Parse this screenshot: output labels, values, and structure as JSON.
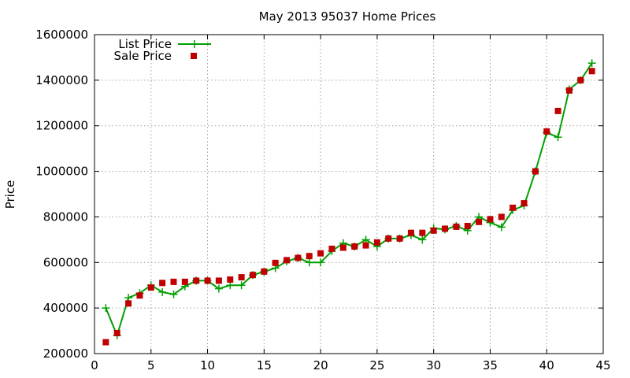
{
  "chart_data": {
    "type": "line",
    "title": "May 2013 95037 Home Prices",
    "xlabel": "",
    "ylabel": "Price",
    "xlim": [
      0,
      45
    ],
    "ylim": [
      200000,
      1600000
    ],
    "x_ticks": [
      "0",
      "5",
      "10",
      "15",
      "20",
      "25",
      "30",
      "35",
      "40",
      "45"
    ],
    "y_ticks": [
      "200000",
      "400000",
      "600000",
      "800000",
      "1000000",
      "1200000",
      "1400000",
      "1600000"
    ],
    "grid": true,
    "legend_position": "top-left",
    "colors": {
      "list": "#00a000",
      "sale": "#c00000"
    },
    "series": [
      {
        "name": "List Price",
        "style": "line-plus",
        "x": [
          1,
          2,
          3,
          4,
          5,
          6,
          7,
          8,
          9,
          10,
          11,
          12,
          13,
          14,
          15,
          16,
          17,
          18,
          19,
          20,
          21,
          22,
          23,
          24,
          25,
          26,
          27,
          28,
          29,
          30,
          31,
          32,
          33,
          34,
          35,
          36,
          37,
          38,
          39,
          40,
          41,
          42,
          43,
          44
        ],
        "values": [
          400000,
          280000,
          445000,
          465000,
          500000,
          470000,
          460000,
          495000,
          520000,
          520000,
          485000,
          500000,
          500000,
          545000,
          560000,
          575000,
          605000,
          620000,
          600000,
          600000,
          650000,
          685000,
          670000,
          700000,
          670000,
          705000,
          705000,
          720000,
          700000,
          750000,
          745000,
          760000,
          740000,
          800000,
          775000,
          755000,
          830000,
          850000,
          1000000,
          1170000,
          1150000,
          1360000,
          1400000,
          1475000
        ]
      },
      {
        "name": "Sale Price",
        "style": "points-square",
        "x": [
          1,
          2,
          3,
          4,
          5,
          6,
          7,
          8,
          9,
          10,
          11,
          12,
          13,
          14,
          15,
          16,
          17,
          18,
          19,
          20,
          21,
          22,
          23,
          24,
          25,
          26,
          27,
          28,
          29,
          30,
          31,
          32,
          33,
          34,
          35,
          36,
          37,
          38,
          39,
          40,
          41,
          42,
          43,
          44
        ],
        "values": [
          250000,
          290000,
          420000,
          455000,
          490000,
          510000,
          515000,
          515000,
          520000,
          520000,
          520000,
          525000,
          535000,
          545000,
          560000,
          598000,
          610000,
          620000,
          628000,
          640000,
          660000,
          665000,
          670000,
          675000,
          688000,
          705000,
          705000,
          730000,
          730000,
          740000,
          748000,
          757000,
          760000,
          778000,
          790000,
          800000,
          840000,
          860000,
          1000000,
          1175000,
          1265000,
          1355000,
          1400000,
          1440000
        ]
      }
    ]
  }
}
